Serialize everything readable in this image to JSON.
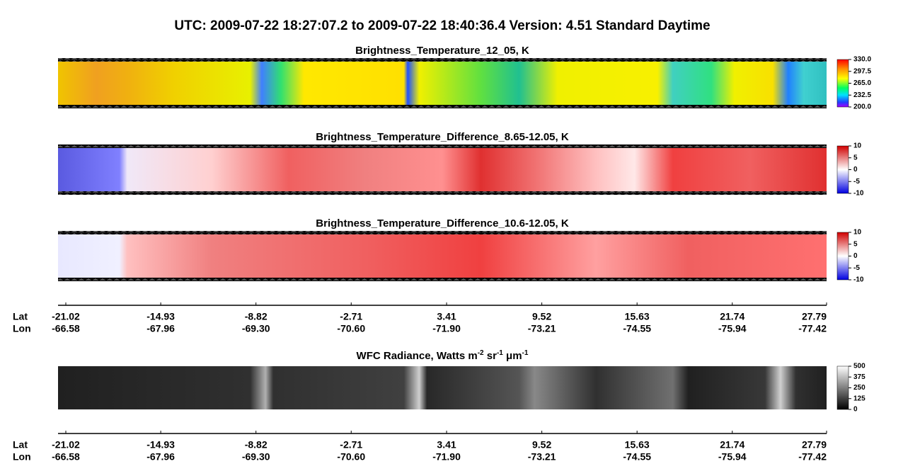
{
  "title": "UTC:  2009-07-22   18:27:07.2  to  2009-07-22   18:40:36.4    Version: 4.51  Standard Daytime",
  "panels": [
    {
      "title": "Brightness_Temperature_12_05, K",
      "colorbar": {
        "range": [
          200,
          330
        ],
        "ticks": [
          {
            "value": 330,
            "label": "330.0"
          },
          {
            "value": 297.5,
            "label": "297.5"
          },
          {
            "value": 265,
            "label": "265.0"
          },
          {
            "value": 232.5,
            "label": "232.5"
          },
          {
            "value": 200,
            "label": "200.0"
          }
        ]
      }
    },
    {
      "title": "Brightness_Temperature_Difference_8.65-12.05, K",
      "colorbar": {
        "range": [
          -10,
          10
        ],
        "ticks": [
          10,
          5,
          0,
          -5,
          -10
        ]
      }
    },
    {
      "title": "Brightness_Temperature_Difference_10.6-12.05, K",
      "colorbar": {
        "range": [
          -10,
          10
        ],
        "ticks": [
          10,
          5,
          0,
          -5,
          -10
        ]
      }
    },
    {
      "title_parts": [
        [
          "WFC Radiance, Watts m",
          "-2"
        ],
        [
          " sr",
          "-1"
        ],
        [
          " μm",
          "-1"
        ]
      ],
      "colorbar": {
        "range": [
          0,
          500
        ],
        "ticks": [
          500,
          375,
          250,
          125,
          0
        ]
      }
    }
  ],
  "axes": [
    {
      "labels": [
        "Lat",
        "Lon"
      ],
      "lat": [
        -21.02,
        -14.93,
        -8.82,
        -2.71,
        3.41,
        9.52,
        15.63,
        21.74,
        27.79
      ],
      "lon": [
        -66.58,
        -67.96,
        {
          "value": -69.3,
          "label": "-69.30"
        },
        {
          "value": -70.6,
          "label": "-70.60"
        },
        {
          "value": -71.9,
          "label": "-71.90"
        },
        -73.21,
        -74.55,
        -75.94,
        -77.42
      ]
    },
    {
      "labels": [
        "Lat",
        "Lon"
      ],
      "lat": [
        -21.02,
        -14.93,
        -8.82,
        -2.71,
        3.41,
        9.52,
        15.63,
        21.74,
        27.79
      ],
      "lon": [
        -66.58,
        -67.96,
        {
          "value": -69.3,
          "label": "-69.30"
        },
        {
          "value": -70.6,
          "label": "-70.60"
        },
        {
          "value": -71.9,
          "label": "-71.90"
        },
        -73.21,
        -74.55,
        -75.94,
        -77.42
      ]
    }
  ]
}
